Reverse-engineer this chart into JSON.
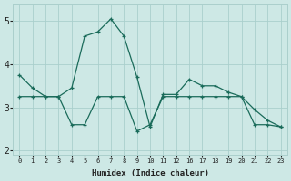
{
  "line1_x": [
    0,
    1,
    2,
    3,
    4,
    5,
    6,
    7,
    8,
    9,
    10,
    11,
    12,
    16,
    17,
    18,
    19,
    20,
    21,
    22,
    23
  ],
  "line1_y": [
    3.75,
    3.45,
    3.25,
    3.25,
    3.45,
    4.65,
    4.75,
    5.05,
    4.65,
    3.7,
    2.55,
    3.3,
    3.3,
    3.65,
    3.5,
    3.5,
    3.35,
    3.25,
    2.95,
    2.7,
    2.55
  ],
  "line2_x": [
    0,
    1,
    2,
    3,
    4,
    5,
    6,
    7,
    8,
    9,
    10,
    11,
    12,
    16,
    17,
    18,
    19,
    20,
    21,
    22,
    23
  ],
  "line2_y": [
    3.25,
    3.25,
    3.25,
    3.25,
    2.6,
    2.6,
    3.25,
    3.25,
    3.25,
    2.45,
    2.6,
    3.25,
    3.25,
    3.25,
    3.25,
    3.25,
    3.25,
    3.25,
    2.6,
    2.6,
    2.55
  ],
  "line_color": "#1a6b5a",
  "bg_color": "#cde8e5",
  "grid_color": "#aacfcc",
  "tick_label_color": "#222222",
  "xlabel": "Humidex (Indice chaleur)",
  "seq_xticks": [
    0,
    1,
    2,
    3,
    4,
    5,
    6,
    7,
    8,
    9,
    10,
    11,
    12,
    13,
    14,
    15,
    16,
    17,
    18,
    19,
    20
  ],
  "xtick_labels": [
    "0",
    "1",
    "2",
    "3",
    "4",
    "5",
    "6",
    "7",
    "8",
    "9",
    "10",
    "11",
    "12",
    "16",
    "17",
    "18",
    "19",
    "20",
    "21",
    "22",
    "23"
  ],
  "yticks": [
    2,
    3,
    4,
    5
  ],
  "ylim": [
    1.9,
    5.4
  ],
  "xlim": [
    -0.5,
    20.5
  ]
}
